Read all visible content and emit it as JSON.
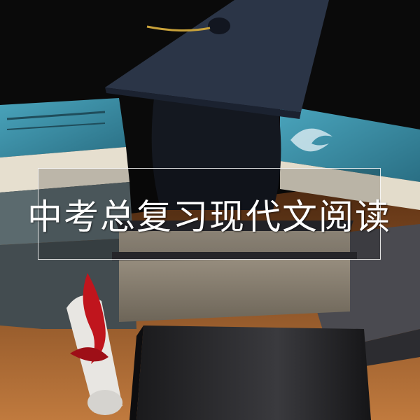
{
  "title": "中考总复习现代文阅读",
  "colors": {
    "background": "#0a0a0a",
    "desk": "#9a5a2c",
    "book_teal": "#3d8fa6",
    "mortarboard": "#2b3547",
    "tassel": "#c9a23a",
    "ribbon": "#c0151d"
  },
  "icons": [
    "graduation-cap-icon",
    "diploma-scroll-icon"
  ]
}
